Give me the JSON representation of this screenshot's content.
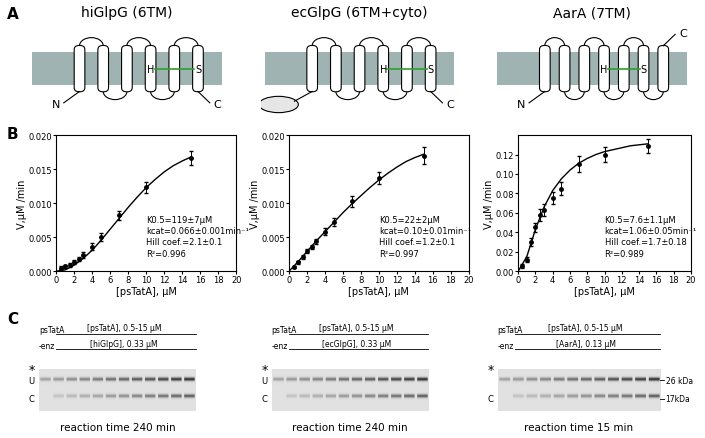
{
  "panel_A": {
    "label": "A",
    "diagrams": [
      {
        "title": "hiGlpG (6TM)",
        "helices": 6,
        "n_label": "N",
        "c_label": "C",
        "h_label": "H",
        "s_label": "S",
        "cyto_domain": false
      },
      {
        "title": "ecGlpG (6TM+cyto)",
        "helices": 6,
        "c_label": "C",
        "h_label": "H",
        "s_label": "S",
        "cyto_domain": true
      },
      {
        "title": "AarA (7TM)",
        "helices": 7,
        "n_label": "N",
        "c_label": "C",
        "h_label": "H",
        "s_label": "S",
        "cyto_domain": false
      }
    ]
  },
  "panel_B": {
    "label": "B"
  },
  "chart_data": [
    {
      "type": "scatter",
      "x_label": "[psTatA], µM",
      "y_label": "V,µM /min",
      "xlim": [
        0,
        20
      ],
      "xticks": [
        0,
        2,
        4,
        6,
        8,
        10,
        12,
        14,
        16,
        18,
        20
      ],
      "ylim": [
        0,
        0.02
      ],
      "yticks": [
        {
          "value": 0,
          "label": "0.000"
        },
        {
          "value": 0.005,
          "label": "0.005"
        },
        {
          "value": 0.01,
          "label": "0.010"
        },
        {
          "value": 0.015,
          "label": "0.015"
        },
        {
          "value": 0.02,
          "label": "0.020"
        }
      ],
      "annotations": [
        "K0.5=119±7µM",
        "kcat=0.066±0.001min⁻¹",
        "Hill coef.=2.1±0.1",
        "R²=0.996"
      ],
      "series": [
        {
          "type": "scatter",
          "color": "#000000",
          "marker": "circle",
          "x": [
            0.5,
            1,
            1.5,
            2,
            2.5,
            3,
            4,
            5,
            7,
            10,
            15
          ],
          "values": [
            0.0005,
            0.0007,
            0.0009,
            0.0013,
            0.0018,
            0.0024,
            0.0036,
            0.005,
            0.0082,
            0.0123,
            0.0166
          ],
          "errors": [
            0.0002,
            0.0002,
            0.0003,
            0.0003,
            0.0003,
            0.0004,
            0.0005,
            0.0006,
            0.0007,
            0.0008,
            0.001
          ]
        },
        {
          "type": "line",
          "color": "#000000",
          "line_style": "solid",
          "x": [
            0,
            1,
            2,
            3,
            4,
            5,
            6,
            7,
            8,
            9,
            10,
            11,
            12,
            13,
            14,
            15
          ],
          "values": [
            0,
            0.0002,
            0.0009,
            0.0019,
            0.0031,
            0.0046,
            0.0062,
            0.0078,
            0.0094,
            0.0109,
            0.0123,
            0.0135,
            0.0146,
            0.0155,
            0.0162,
            0.0168
          ]
        }
      ]
    },
    {
      "type": "scatter",
      "x_label": "[psTatA], µM",
      "y_label": "V,µM /min",
      "xlim": [
        0,
        20
      ],
      "xticks": [
        0,
        2,
        4,
        6,
        8,
        10,
        12,
        14,
        16,
        18,
        20
      ],
      "ylim": [
        0,
        0.02
      ],
      "yticks": [
        {
          "value": 0,
          "label": "0.000"
        },
        {
          "value": 0.005,
          "label": "0.005"
        },
        {
          "value": 0.01,
          "label": "0.010"
        },
        {
          "value": 0.015,
          "label": "0.015"
        },
        {
          "value": 0.02,
          "label": "0.020"
        }
      ],
      "annotations": [
        "K0.5=22±2µM",
        "kcat=0.10±0.01min⁻¹",
        "Hill coef.=1.2±0.1",
        "R²=0.997"
      ],
      "series": [
        {
          "type": "scatter",
          "color": "#000000",
          "marker": "circle",
          "x": [
            0.5,
            1,
            1.5,
            2,
            2.5,
            3,
            4,
            5,
            7,
            10,
            15
          ],
          "values": [
            0.0006,
            0.0013,
            0.0021,
            0.0029,
            0.0036,
            0.0044,
            0.0058,
            0.0072,
            0.0103,
            0.0137,
            0.017
          ],
          "errors": [
            0.0002,
            0.0002,
            0.0003,
            0.0003,
            0.0003,
            0.0004,
            0.0005,
            0.0006,
            0.0008,
            0.0009,
            0.0012
          ]
        },
        {
          "type": "line",
          "color": "#000000",
          "line_style": "solid",
          "x": [
            0,
            1,
            2,
            3,
            4,
            5,
            6,
            7,
            8,
            9,
            10,
            11,
            12,
            13,
            14,
            15
          ],
          "values": [
            0,
            0.0014,
            0.0029,
            0.0044,
            0.0058,
            0.0072,
            0.0086,
            0.0099,
            0.0111,
            0.0123,
            0.0134,
            0.0144,
            0.0153,
            0.0161,
            0.0167,
            0.0172
          ]
        }
      ]
    },
    {
      "type": "scatter",
      "x_label": "[psTatA], µM",
      "y_label": "V,µM /min",
      "xlim": [
        0,
        20
      ],
      "xticks": [
        0,
        2,
        4,
        6,
        8,
        10,
        12,
        14,
        16,
        18,
        20
      ],
      "ylim": [
        0,
        0.14
      ],
      "yticks": [
        {
          "value": 0,
          "label": "0.00"
        },
        {
          "value": 0.02,
          "label": "0.02"
        },
        {
          "value": 0.04,
          "label": "0.04"
        },
        {
          "value": 0.06,
          "label": "0.06"
        },
        {
          "value": 0.08,
          "label": "0.08"
        },
        {
          "value": 0.1,
          "label": "0.10"
        },
        {
          "value": 0.12,
          "label": "0.12"
        }
      ],
      "annotations": [
        "K0.5=7.6±1.1µM",
        "kcat=1.06±0.05min⁻¹",
        "Hill coef.=1.7±0.18",
        "R²=0.989"
      ],
      "series": [
        {
          "type": "scatter",
          "color": "#000000",
          "marker": "circle",
          "x": [
            0.5,
            1,
            1.5,
            2,
            2.5,
            3,
            4,
            5,
            7,
            10,
            15
          ],
          "values": [
            0.005,
            0.012,
            0.03,
            0.045,
            0.058,
            0.063,
            0.075,
            0.085,
            0.11,
            0.12,
            0.129
          ],
          "errors": [
            0.002,
            0.003,
            0.004,
            0.005,
            0.006,
            0.006,
            0.006,
            0.007,
            0.008,
            0.008,
            0.007
          ]
        },
        {
          "type": "line",
          "color": "#000000",
          "line_style": "solid",
          "x": [
            0,
            1,
            2,
            3,
            4,
            5,
            6,
            7,
            8,
            9,
            10,
            11,
            12,
            13,
            14,
            15
          ],
          "values": [
            0,
            0.015,
            0.043,
            0.066,
            0.083,
            0.095,
            0.104,
            0.111,
            0.116,
            0.12,
            0.123,
            0.125,
            0.127,
            0.129,
            0.13,
            0.131
          ]
        }
      ]
    }
  ],
  "panel_C": {
    "label": "C",
    "gels": [
      {
        "header_top": "psTatA",
        "header_sub": "-enz",
        "substrate": "[psTatA], 0.5-15 µM",
        "enzyme": "[hiGlpG], 0.33 µM",
        "star": "*",
        "left_labels": [
          "U",
          "C"
        ],
        "caption": "reaction time 240 min"
      },
      {
        "header_top": "psTatA",
        "header_sub": "-enz",
        "substrate": "[psTatA], 0.5-15 µM",
        "enzyme": "[ecGlpG], 0.33 µM",
        "star": "*",
        "left_labels": [
          "U",
          "C"
        ],
        "caption": "reaction time 240 min"
      },
      {
        "header_top": "psTatA",
        "header_sub": "-enz",
        "substrate": "[psTatA], 0.5-15 µM",
        "enzyme": "[AarA], 0.13 µM",
        "star": "*",
        "left_labels": [
          null,
          "C"
        ],
        "right_labels": [
          "26 kDa",
          "17kDa"
        ],
        "caption": "reaction time 15 min"
      }
    ]
  }
}
